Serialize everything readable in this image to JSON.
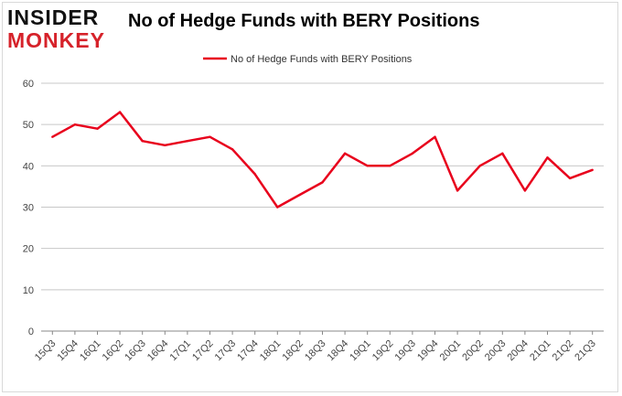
{
  "logo": {
    "line1": "INSIDER",
    "line2": "MONKEY"
  },
  "chart_data": {
    "type": "line",
    "title": "No of Hedge Funds with BERY Positions",
    "xlabel": "",
    "ylabel": "",
    "ylim": [
      0,
      60
    ],
    "yticks": [
      0,
      10,
      20,
      30,
      40,
      50,
      60
    ],
    "grid": true,
    "legend_position": "top-center",
    "categories": [
      "15Q3",
      "15Q4",
      "16Q1",
      "16Q2",
      "16Q3",
      "16Q4",
      "17Q1",
      "17Q2",
      "17Q3",
      "17Q4",
      "18Q1",
      "18Q2",
      "18Q3",
      "18Q4",
      "19Q1",
      "19Q2",
      "19Q3",
      "19Q4",
      "20Q1",
      "20Q2",
      "20Q3",
      "20Q4",
      "21Q1",
      "21Q2",
      "21Q3"
    ],
    "series": [
      {
        "name": "No of Hedge Funds with BERY  Positions",
        "color": "#e8001c",
        "values": [
          47,
          50,
          49,
          53,
          46,
          45,
          46,
          47,
          44,
          38,
          30,
          33,
          36,
          43,
          40,
          40,
          43,
          47,
          34,
          40,
          43,
          34,
          42,
          37,
          39
        ]
      }
    ]
  }
}
